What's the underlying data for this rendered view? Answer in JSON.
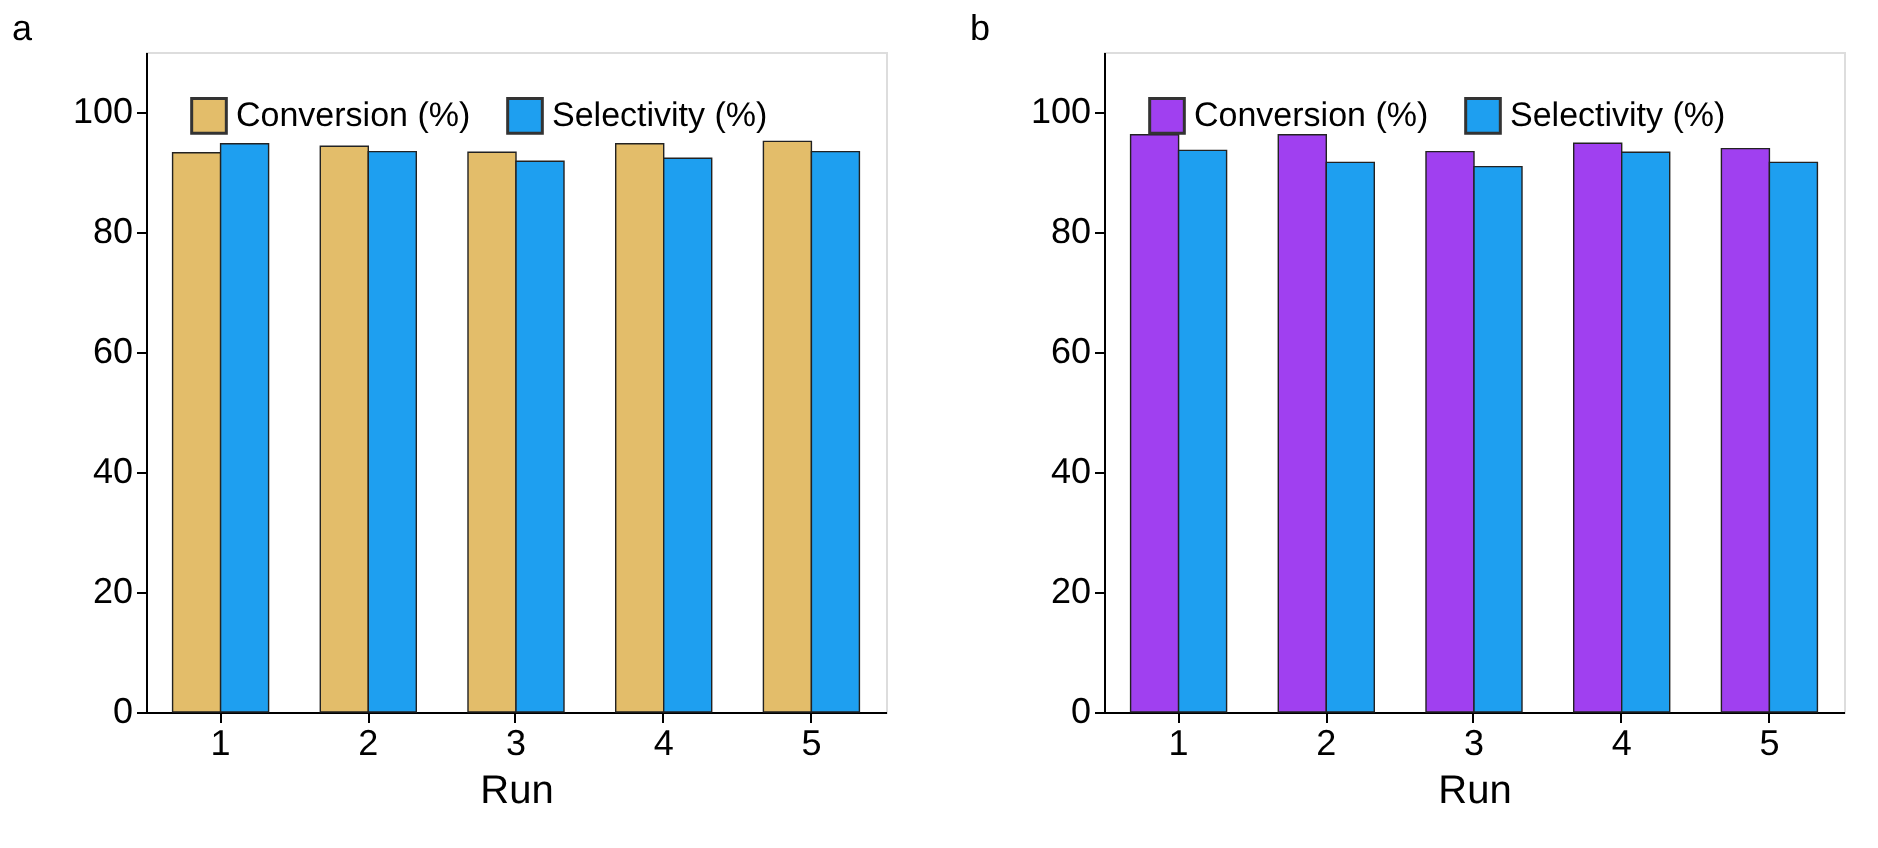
{
  "chart_data": [
    {
      "type": "bar",
      "title": "a",
      "xlabel": "Run",
      "categories": [
        "1",
        "2",
        "3",
        "4",
        "5"
      ],
      "ylim": [
        0,
        110
      ],
      "yticks": [
        0,
        20,
        40,
        60,
        80,
        100
      ],
      "legend": "top",
      "grid": false,
      "series": [
        {
          "name": "Conversion (%)",
          "color": "#e3bd6a",
          "values": [
            93.2,
            94.3,
            93.3,
            94.7,
            95.1
          ]
        },
        {
          "name": "Selectivity (%)",
          "color": "#1e9ff0",
          "values": [
            94.7,
            93.4,
            91.8,
            92.3,
            93.4
          ]
        }
      ]
    },
    {
      "type": "bar",
      "title": "b",
      "xlabel": "Run",
      "categories": [
        "1",
        "2",
        "3",
        "4",
        "5"
      ],
      "ylim": [
        0,
        110
      ],
      "yticks": [
        0,
        20,
        40,
        60,
        80,
        100
      ],
      "legend": "top",
      "grid": false,
      "series": [
        {
          "name": "Conversion (%)",
          "color": "#a040f0",
          "values": [
            96.2,
            96.2,
            93.4,
            94.8,
            93.9
          ]
        },
        {
          "name": "Selectivity (%)",
          "color": "#1e9ff0",
          "values": [
            93.6,
            91.6,
            90.9,
            93.3,
            91.6
          ]
        }
      ]
    }
  ]
}
